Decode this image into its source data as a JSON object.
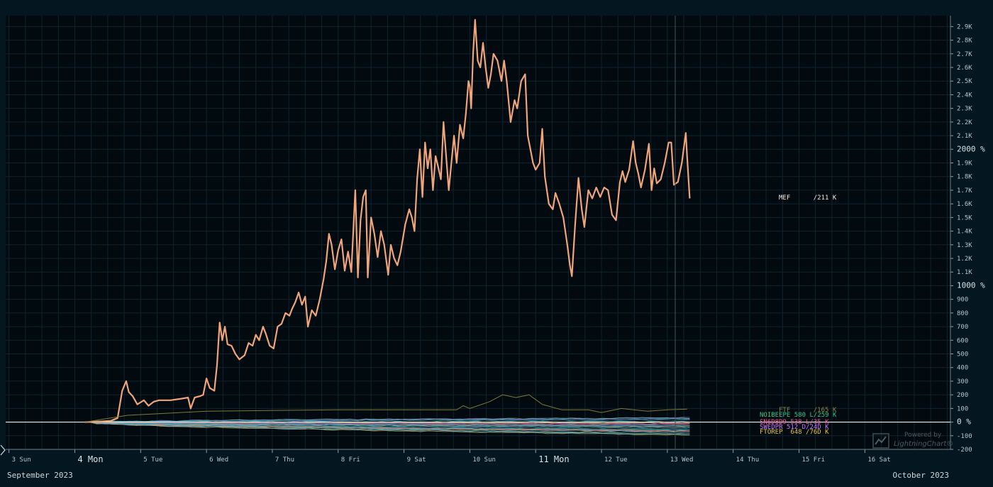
{
  "chart_data": {
    "type": "line",
    "title": "",
    "xlabel": "",
    "ylabel": "",
    "x_axis": {
      "ticks": [
        {
          "label": "3 Sun",
          "day": 3,
          "major": false
        },
        {
          "label": "4 Mon",
          "day": 4,
          "major": true
        },
        {
          "label": "5 Tue",
          "day": 5,
          "major": false
        },
        {
          "label": "6 Wed",
          "day": 6,
          "major": false
        },
        {
          "label": "7 Thu",
          "day": 7,
          "major": false
        },
        {
          "label": "8 Fri",
          "day": 8,
          "major": false
        },
        {
          "label": "9 Sat",
          "day": 9,
          "major": false
        },
        {
          "label": "10 Sun",
          "day": 10,
          "major": false
        },
        {
          "label": "11 Mon",
          "day": 11,
          "major": true
        },
        {
          "label": "12 Tue",
          "day": 12,
          "major": false
        },
        {
          "label": "13 Wed",
          "day": 13,
          "major": false
        },
        {
          "label": "14 Thu",
          "day": 14,
          "major": false
        },
        {
          "label": "15 Fri",
          "day": 15,
          "major": false
        },
        {
          "label": "16 Sat",
          "day": 16,
          "major": false
        }
      ],
      "range_days": [
        2.95,
        17.3
      ],
      "month_left": "September 2023",
      "month_right": "October 2023"
    },
    "y_axis": {
      "range": [
        -200,
        2980
      ],
      "ticks": [
        {
          "v": -200,
          "label": "-200"
        },
        {
          "v": -100,
          "label": "-100"
        },
        {
          "v": 0,
          "label": "0 %",
          "major": true
        },
        {
          "v": 100,
          "label": "100"
        },
        {
          "v": 200,
          "label": "200"
        },
        {
          "v": 300,
          "label": "300"
        },
        {
          "v": 400,
          "label": "400"
        },
        {
          "v": 500,
          "label": "500"
        },
        {
          "v": 600,
          "label": "600"
        },
        {
          "v": 700,
          "label": "700"
        },
        {
          "v": 800,
          "label": "800"
        },
        {
          "v": 900,
          "label": "900"
        },
        {
          "v": 1000,
          "label": "1000 %",
          "major": true
        },
        {
          "v": 1100,
          "label": "1.1K"
        },
        {
          "v": 1200,
          "label": "1.2K"
        },
        {
          "v": 1300,
          "label": "1.3K"
        },
        {
          "v": 1400,
          "label": "1.4K"
        },
        {
          "v": 1500,
          "label": "1.5K"
        },
        {
          "v": 1600,
          "label": "1.6K"
        },
        {
          "v": 1700,
          "label": "1.7K"
        },
        {
          "v": 1800,
          "label": "1.8K"
        },
        {
          "v": 1900,
          "label": "1.9K"
        },
        {
          "v": 2000,
          "label": "2000 %",
          "major": true
        },
        {
          "v": 2100,
          "label": "2.1K"
        },
        {
          "v": 2200,
          "label": "2.2K"
        },
        {
          "v": 2300,
          "label": "2.3K"
        },
        {
          "v": 2400,
          "label": "2.4K"
        },
        {
          "v": 2500,
          "label": "2.5K"
        },
        {
          "v": 2600,
          "label": "2.6K"
        },
        {
          "v": 2700,
          "label": "2.7K"
        },
        {
          "v": 2800,
          "label": "2.8K"
        },
        {
          "v": 2900,
          "label": "2.9K"
        }
      ]
    },
    "grid": true,
    "crosshair_day": 13.12,
    "series": [
      {
        "name": "MEF",
        "label": "MEF      /211 K",
        "color": "#f0a47a",
        "points": [
          [
            4.15,
            0
          ],
          [
            4.4,
            5
          ],
          [
            4.55,
            10
          ],
          [
            4.65,
            30
          ],
          [
            4.72,
            230
          ],
          [
            4.78,
            300
          ],
          [
            4.82,
            220
          ],
          [
            4.88,
            190
          ],
          [
            4.95,
            130
          ],
          [
            5.05,
            160
          ],
          [
            5.12,
            120
          ],
          [
            5.2,
            150
          ],
          [
            5.28,
            160
          ],
          [
            5.45,
            160
          ],
          [
            5.6,
            170
          ],
          [
            5.72,
            180
          ],
          [
            5.76,
            100
          ],
          [
            5.82,
            180
          ],
          [
            5.9,
            190
          ],
          [
            5.95,
            200
          ],
          [
            6.0,
            320
          ],
          [
            6.05,
            250
          ],
          [
            6.12,
            230
          ],
          [
            6.16,
            420
          ],
          [
            6.2,
            730
          ],
          [
            6.24,
            600
          ],
          [
            6.28,
            700
          ],
          [
            6.32,
            570
          ],
          [
            6.38,
            560
          ],
          [
            6.44,
            500
          ],
          [
            6.5,
            460
          ],
          [
            6.58,
            490
          ],
          [
            6.64,
            580
          ],
          [
            6.7,
            560
          ],
          [
            6.75,
            640
          ],
          [
            6.8,
            600
          ],
          [
            6.86,
            700
          ],
          [
            6.9,
            650
          ],
          [
            6.96,
            560
          ],
          [
            7.02,
            540
          ],
          [
            7.08,
            700
          ],
          [
            7.14,
            720
          ],
          [
            7.2,
            800
          ],
          [
            7.26,
            780
          ],
          [
            7.3,
            830
          ],
          [
            7.35,
            880
          ],
          [
            7.4,
            950
          ],
          [
            7.45,
            860
          ],
          [
            7.5,
            920
          ],
          [
            7.54,
            700
          ],
          [
            7.6,
            820
          ],
          [
            7.66,
            780
          ],
          [
            7.72,
            900
          ],
          [
            7.78,
            1050
          ],
          [
            7.82,
            1180
          ],
          [
            7.86,
            1380
          ],
          [
            7.9,
            1300
          ],
          [
            7.95,
            1120
          ],
          [
            8.0,
            1260
          ],
          [
            8.05,
            1340
          ],
          [
            8.1,
            1110
          ],
          [
            8.15,
            1250
          ],
          [
            8.2,
            1100
          ],
          [
            8.26,
            1700
          ],
          [
            8.3,
            1060
          ],
          [
            8.34,
            1480
          ],
          [
            8.38,
            1650
          ],
          [
            8.42,
            1700
          ],
          [
            8.45,
            1060
          ],
          [
            8.5,
            1500
          ],
          [
            8.55,
            1380
          ],
          [
            8.6,
            1210
          ],
          [
            8.65,
            1400
          ],
          [
            8.7,
            1300
          ],
          [
            8.76,
            1080
          ],
          [
            8.8,
            1300
          ],
          [
            8.85,
            1200
          ],
          [
            8.9,
            1150
          ],
          [
            8.95,
            1250
          ],
          [
            9.02,
            1450
          ],
          [
            9.08,
            1560
          ],
          [
            9.12,
            1500
          ],
          [
            9.16,
            1400
          ],
          [
            9.2,
            1780
          ],
          [
            9.24,
            2000
          ],
          [
            9.28,
            1650
          ],
          [
            9.32,
            2050
          ],
          [
            9.36,
            1860
          ],
          [
            9.4,
            2000
          ],
          [
            9.44,
            1700
          ],
          [
            9.48,
            1950
          ],
          [
            9.52,
            1870
          ],
          [
            9.56,
            1780
          ],
          [
            9.6,
            2200
          ],
          [
            9.64,
            1950
          ],
          [
            9.68,
            1700
          ],
          [
            9.72,
            1900
          ],
          [
            9.76,
            2100
          ],
          [
            9.8,
            1900
          ],
          [
            9.85,
            2180
          ],
          [
            9.9,
            2080
          ],
          [
            9.94,
            2260
          ],
          [
            9.98,
            2500
          ],
          [
            10.0,
            2460
          ],
          [
            10.02,
            2300
          ],
          [
            10.05,
            2700
          ],
          [
            10.08,
            2950
          ],
          [
            10.12,
            2650
          ],
          [
            10.16,
            2600
          ],
          [
            10.2,
            2780
          ],
          [
            10.24,
            2600
          ],
          [
            10.28,
            2450
          ],
          [
            10.32,
            2550
          ],
          [
            10.36,
            2700
          ],
          [
            10.42,
            2650
          ],
          [
            10.48,
            2500
          ],
          [
            10.52,
            2650
          ],
          [
            10.56,
            2500
          ],
          [
            10.62,
            2200
          ],
          [
            10.68,
            2360
          ],
          [
            10.72,
            2300
          ],
          [
            10.78,
            2500
          ],
          [
            10.84,
            2550
          ],
          [
            10.88,
            2100
          ],
          [
            10.92,
            2000
          ],
          [
            10.96,
            1900
          ],
          [
            11.0,
            1850
          ],
          [
            11.06,
            1900
          ],
          [
            11.1,
            2150
          ],
          [
            11.14,
            1800
          ],
          [
            11.2,
            1600
          ],
          [
            11.26,
            1560
          ],
          [
            11.3,
            1680
          ],
          [
            11.36,
            1600
          ],
          [
            11.42,
            1500
          ],
          [
            11.48,
            1300
          ],
          [
            11.52,
            1150
          ],
          [
            11.55,
            1070
          ],
          [
            11.6,
            1450
          ],
          [
            11.65,
            1790
          ],
          [
            11.7,
            1560
          ],
          [
            11.74,
            1430
          ],
          [
            11.8,
            1700
          ],
          [
            11.86,
            1640
          ],
          [
            11.92,
            1720
          ],
          [
            11.98,
            1650
          ],
          [
            12.04,
            1720
          ],
          [
            12.1,
            1700
          ],
          [
            12.16,
            1520
          ],
          [
            12.22,
            1480
          ],
          [
            12.28,
            1760
          ],
          [
            12.32,
            1840
          ],
          [
            12.36,
            1760
          ],
          [
            12.42,
            1850
          ],
          [
            12.48,
            2060
          ],
          [
            12.52,
            1900
          ],
          [
            12.56,
            1820
          ],
          [
            12.6,
            1720
          ],
          [
            12.66,
            1850
          ],
          [
            12.72,
            2040
          ],
          [
            12.76,
            1700
          ],
          [
            12.8,
            1860
          ],
          [
            12.84,
            1750
          ],
          [
            12.9,
            1780
          ],
          [
            12.96,
            1900
          ],
          [
            13.02,
            2050
          ],
          [
            13.06,
            2050
          ],
          [
            13.1,
            1740
          ],
          [
            13.16,
            1760
          ],
          [
            13.22,
            1900
          ],
          [
            13.28,
            2120
          ],
          [
            13.3,
            1950
          ],
          [
            13.34,
            1640
          ]
        ]
      },
      {
        "name": "FTF",
        "label": "FTF      /165 K",
        "color": "#7d7a3c",
        "points": [
          [
            4.15,
            0
          ],
          [
            4.8,
            50
          ],
          [
            6.0,
            80
          ],
          [
            8.0,
            90
          ],
          [
            9.8,
            90
          ],
          [
            9.9,
            120
          ],
          [
            10.0,
            100
          ],
          [
            10.3,
            150
          ],
          [
            10.5,
            200
          ],
          [
            10.7,
            180
          ],
          [
            10.9,
            200
          ],
          [
            11.1,
            130
          ],
          [
            11.4,
            90
          ],
          [
            11.8,
            90
          ],
          [
            12.0,
            70
          ],
          [
            12.3,
            100
          ],
          [
            12.7,
            80
          ],
          [
            13.0,
            90
          ],
          [
            13.3,
            95
          ]
        ]
      }
    ],
    "cluster_labels": [
      {
        "text": "NOIBEEPE 580 L/259 K",
        "color": "#37c78e"
      },
      {
        "text": "SN6D8D9 538 L/35 K",
        "color": "#ff5a9b"
      },
      {
        "text": "SWEDPR 512 D/24D K",
        "color": "#c87cff"
      },
      {
        "text": "FTOREP  648 /76D K",
        "color": "#e7c142"
      }
    ],
    "colors": {
      "background": "#04161f",
      "plot_background": "#02090f",
      "grid": "#0f2430",
      "zero_line": "#e8f0f2",
      "crosshair": "#3e555f"
    },
    "watermark": {
      "top": "Powered by",
      "bottom": "LightningChart®"
    }
  }
}
